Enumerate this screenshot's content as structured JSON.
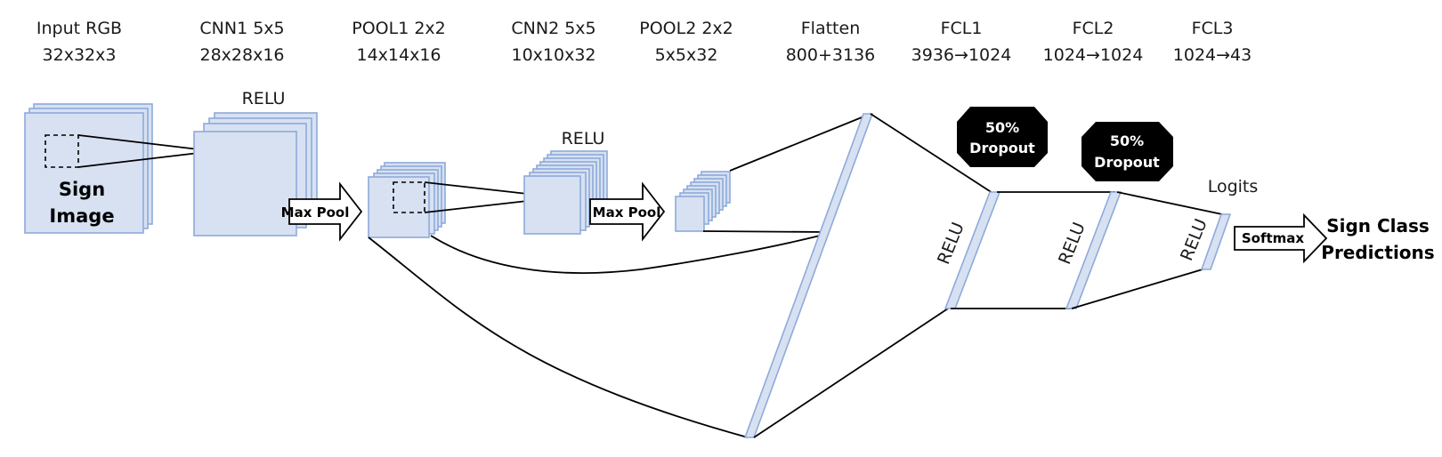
{
  "headers": [
    {
      "title": "Input RGB",
      "dims": "32x32x3"
    },
    {
      "title": "CNN1 5x5",
      "dims": "28x28x16"
    },
    {
      "title": "POOL1 2x2",
      "dims": "14x14x16"
    },
    {
      "title": "CNN2 5x5",
      "dims": "10x10x32"
    },
    {
      "title": "POOL2 2x2",
      "dims": "5x5x32"
    },
    {
      "title": "Flatten",
      "dims": "800+3136"
    },
    {
      "title": "FCL1",
      "dims": "3936→1024"
    },
    {
      "title": "FCL2",
      "dims": "1024→1024"
    },
    {
      "title": "FCL3",
      "dims": "1024→43"
    }
  ],
  "input": {
    "line1": "Sign",
    "line2": "Image"
  },
  "relu": {
    "cnn1": "RELU",
    "cnn2": "RELU",
    "fcl1": "RELU",
    "fcl2": "RELU",
    "fcl3": "RELU"
  },
  "pool_arrows": {
    "pool1": "Max Pool",
    "pool2": "Max Pool"
  },
  "dropout": [
    {
      "pct": "50%",
      "label": "Dropout"
    },
    {
      "pct": "50%",
      "label": "Dropout"
    }
  ],
  "logits": "Logits",
  "softmax": "Softmax",
  "output": {
    "line1": "Sign Class",
    "line2": "Predictions"
  },
  "colors": {
    "layer_fill": "#d7e1f1",
    "layer_stroke": "#8eaadb",
    "dropout": "#000000"
  }
}
